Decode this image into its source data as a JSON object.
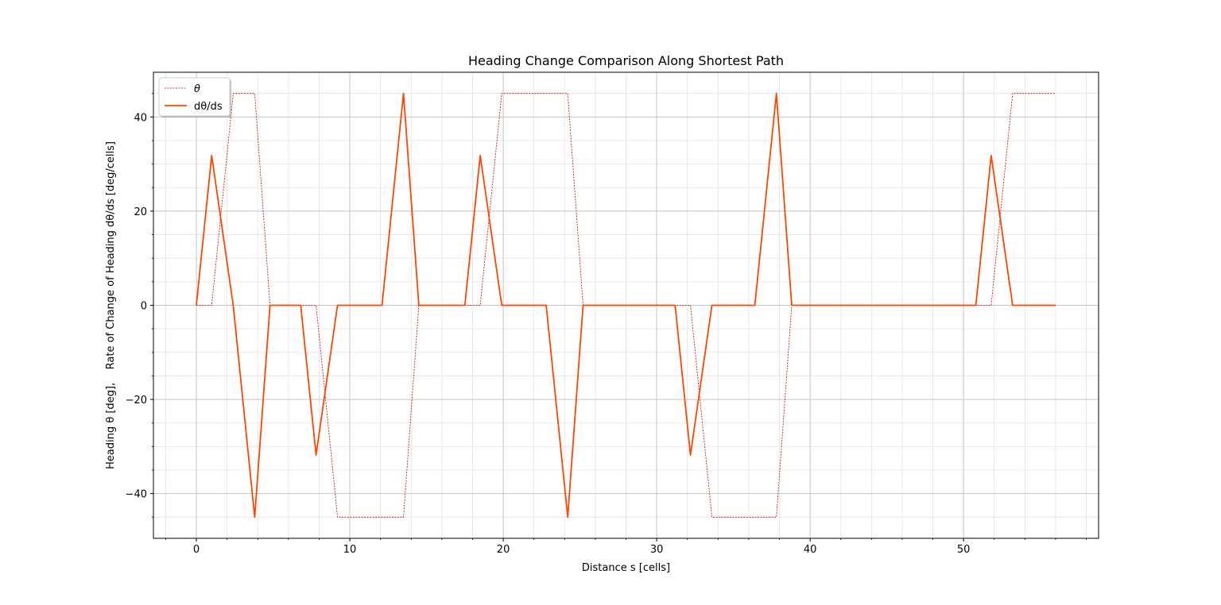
{
  "chart_data": {
    "type": "line",
    "title": "Heading Change Comparison Along Shortest Path",
    "xlabel": "Distance s [cells]",
    "ylabel": "Heading θ [deg],    Rate of Change of Heading dθ/ds [deg/cells]",
    "xlim": [
      -2.8,
      58.8
    ],
    "ylim": [
      -49.5,
      49.5
    ],
    "xticks": [
      0,
      10,
      20,
      30,
      40,
      50
    ],
    "yticks": [
      -40,
      -20,
      0,
      20,
      40
    ],
    "xtick_labels": [
      "0",
      "10",
      "20",
      "30",
      "40",
      "50"
    ],
    "ytick_labels": [
      "−40",
      "−20",
      "0",
      "20",
      "40"
    ],
    "grid": true,
    "minor_grid": true,
    "legend_position": "upper-left",
    "series": [
      {
        "name": "θ",
        "color": "#cc0000",
        "style": "dotted",
        "x": [
          0,
          1,
          2.4,
          3.8,
          4.8,
          6.8,
          7.8,
          9.2,
          13.5,
          14.5,
          17.5,
          18.5,
          19.9,
          24.2,
          25.2,
          31.2,
          32.2,
          33.6,
          37.8,
          38.8,
          50.8,
          51.8,
          53.2,
          56
        ],
        "y": [
          0,
          0,
          45,
          45,
          0,
          0,
          0,
          -45,
          -45,
          0,
          0,
          0,
          45,
          45,
          0,
          0,
          0,
          -45,
          -45,
          0,
          0,
          0,
          45,
          45
        ]
      },
      {
        "name": "dθ/ds",
        "color": "#ff4500",
        "style": "solid",
        "x": [
          0,
          1,
          2.4,
          3.8,
          4.8,
          6.8,
          7.8,
          9.2,
          12.1,
          13.5,
          14.5,
          17.5,
          18.5,
          19.9,
          22.8,
          24.2,
          25.2,
          31.2,
          32.2,
          33.6,
          36.4,
          37.8,
          38.8,
          50.8,
          51.8,
          53.2,
          56
        ],
        "y": [
          0,
          31.8,
          0,
          -45,
          0,
          0,
          -31.8,
          0,
          0,
          45,
          0,
          0,
          31.8,
          0,
          0,
          -45,
          0,
          0,
          -31.8,
          0,
          0,
          45,
          0,
          0,
          31.8,
          0,
          0
        ]
      }
    ]
  }
}
